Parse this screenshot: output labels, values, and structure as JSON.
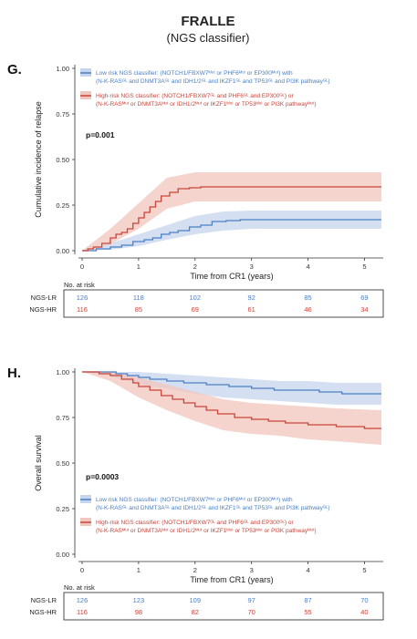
{
  "header": {
    "title": "FRALLE",
    "subtitle": "(NGS classifier)"
  },
  "colors": {
    "low": "#4a7fc4",
    "low_band": "#c6d5ee",
    "high": "#c9453a",
    "high_band": "#f1c6bd",
    "axis": "#333333"
  },
  "legend": {
    "low_line1": "Low risk NGS classifier: (NOTCH1/FBXW7ᴹᵘᵗ or PHF6ᴹᵘᵗ or EP300ᴹᵘᵗ) with",
    "low_line2": "(N-K-RASᴳᴸ and DNMT3Aᴳᴸ and IDH1/2ᴳᴸ and IKZF1ᴳᴸ and TP53ᴳᴸ and PI3K pathwayᴳᴸ)",
    "high_line1": "High-risk NGS classifier: (NOTCH1/FBXW7ᴳᴸ and PHF6ᴳᴸ and EP300ᴳᴸ) or",
    "high_line2": "(N-K-RASᴹᵘᵗ or DNMT3Aᴹᵘᵗ or IDH1/2ᴹᵘᵗ or IKZF1ᴹᵘᵗ or TP53ᴹᵘᵗ or PI3K pathwayᴹᵘᵗ)"
  },
  "chart_data": [
    {
      "type": "line",
      "panel_label": "G.",
      "ylabel": "Cumulative incidence of relapse",
      "xlabel": "Time from CR1 (years)",
      "xlim": [
        0,
        5.3
      ],
      "ylim": [
        0,
        1
      ],
      "x_ticks": [
        "0",
        "1",
        "2",
        "3",
        "4",
        "5"
      ],
      "y_ticks": [
        "0.00",
        "0.25",
        "0.50",
        "0.75",
        "1.00"
      ],
      "pvalue": "p=0.001",
      "legend_position": "top",
      "series": [
        {
          "key": "low",
          "points": [
            [
              0,
              0
            ],
            [
              0.25,
              0.01
            ],
            [
              0.5,
              0.02
            ],
            [
              0.7,
              0.03
            ],
            [
              0.9,
              0.05
            ],
            [
              1.0,
              0.05
            ],
            [
              1.1,
              0.06
            ],
            [
              1.25,
              0.07
            ],
            [
              1.4,
              0.09
            ],
            [
              1.55,
              0.1
            ],
            [
              1.7,
              0.11
            ],
            [
              1.9,
              0.13
            ],
            [
              2.1,
              0.14
            ],
            [
              2.3,
              0.16
            ],
            [
              2.55,
              0.165
            ],
            [
              2.8,
              0.17
            ],
            [
              3.2,
              0.17
            ],
            [
              5.3,
              0.17
            ]
          ],
          "lower": [
            [
              0,
              0
            ],
            [
              0.5,
              0.005
            ],
            [
              1.0,
              0.025
            ],
            [
              1.5,
              0.06
            ],
            [
              2.0,
              0.09
            ],
            [
              2.5,
              0.11
            ],
            [
              3.0,
              0.12
            ],
            [
              5.3,
              0.12
            ]
          ],
          "upper": [
            [
              0,
              0
            ],
            [
              0.5,
              0.04
            ],
            [
              1.0,
              0.09
            ],
            [
              1.5,
              0.14
            ],
            [
              2.0,
              0.19
            ],
            [
              2.5,
              0.215
            ],
            [
              3.0,
              0.22
            ],
            [
              5.3,
              0.22
            ]
          ]
        },
        {
          "key": "high",
          "points": [
            [
              0,
              0
            ],
            [
              0.1,
              0.01
            ],
            [
              0.2,
              0.02
            ],
            [
              0.35,
              0.04
            ],
            [
              0.5,
              0.07
            ],
            [
              0.6,
              0.09
            ],
            [
              0.7,
              0.1
            ],
            [
              0.8,
              0.12
            ],
            [
              0.9,
              0.15
            ],
            [
              1.0,
              0.18
            ],
            [
              1.1,
              0.21
            ],
            [
              1.2,
              0.24
            ],
            [
              1.3,
              0.27
            ],
            [
              1.4,
              0.3
            ],
            [
              1.55,
              0.32
            ],
            [
              1.7,
              0.34
            ],
            [
              1.9,
              0.345
            ],
            [
              2.1,
              0.35
            ],
            [
              2.5,
              0.35
            ],
            [
              3.0,
              0.35
            ],
            [
              5.3,
              0.35
            ]
          ],
          "lower": [
            [
              0,
              0
            ],
            [
              0.5,
              0.035
            ],
            [
              1.0,
              0.12
            ],
            [
              1.5,
              0.23
            ],
            [
              2.0,
              0.27
            ],
            [
              2.5,
              0.27
            ],
            [
              5.3,
              0.27
            ]
          ],
          "upper": [
            [
              0,
              0
            ],
            [
              0.5,
              0.12
            ],
            [
              1.0,
              0.26
            ],
            [
              1.5,
              0.4
            ],
            [
              2.0,
              0.43
            ],
            [
              2.5,
              0.43
            ],
            [
              5.3,
              0.43
            ]
          ]
        }
      ],
      "risk_table": {
        "title": "No. at risk",
        "rows": [
          {
            "label": "NGS-LR",
            "key": "low",
            "values": [
              "126",
              "118",
              "102",
              "92",
              "85",
              "69"
            ]
          },
          {
            "label": "NGS-HR",
            "key": "high",
            "values": [
              "116",
              "85",
              "69",
              "61",
              "46",
              "34"
            ]
          }
        ]
      }
    },
    {
      "type": "line",
      "panel_label": "H.",
      "ylabel": "Overall survival",
      "xlabel": "Time from CR1 (years)",
      "xlim": [
        0,
        5.3
      ],
      "ylim": [
        0,
        1
      ],
      "x_ticks": [
        "0",
        "1",
        "2",
        "3",
        "4",
        "5"
      ],
      "y_ticks": [
        "0.00",
        "0.25",
        "0.50",
        "0.75",
        "1.00"
      ],
      "pvalue": "p=0.0003",
      "legend_position": "bottom",
      "series": [
        {
          "key": "low",
          "points": [
            [
              0,
              1
            ],
            [
              0.4,
              1
            ],
            [
              0.6,
              0.99
            ],
            [
              0.8,
              0.98
            ],
            [
              1.0,
              0.97
            ],
            [
              1.2,
              0.96
            ],
            [
              1.5,
              0.95
            ],
            [
              1.8,
              0.94
            ],
            [
              2.2,
              0.93
            ],
            [
              2.6,
              0.92
            ],
            [
              3.0,
              0.91
            ],
            [
              3.4,
              0.9
            ],
            [
              3.8,
              0.9
            ],
            [
              4.2,
              0.89
            ],
            [
              4.6,
              0.88
            ],
            [
              5.3,
              0.88
            ]
          ],
          "lower": [
            [
              0,
              1
            ],
            [
              0.5,
              0.98
            ],
            [
              1.0,
              0.93
            ],
            [
              1.5,
              0.91
            ],
            [
              2.0,
              0.88
            ],
            [
              2.5,
              0.86
            ],
            [
              3.0,
              0.85
            ],
            [
              3.5,
              0.84
            ],
            [
              4.0,
              0.83
            ],
            [
              4.5,
              0.82
            ],
            [
              5.3,
              0.82
            ]
          ],
          "upper": [
            [
              0,
              1
            ],
            [
              0.5,
              1.0
            ],
            [
              1.0,
              1.0
            ],
            [
              1.5,
              0.99
            ],
            [
              2.0,
              0.98
            ],
            [
              2.5,
              0.97
            ],
            [
              3.0,
              0.96
            ],
            [
              3.5,
              0.95
            ],
            [
              4.0,
              0.95
            ],
            [
              4.5,
              0.94
            ],
            [
              5.3,
              0.94
            ]
          ]
        },
        {
          "key": "high",
          "points": [
            [
              0,
              1
            ],
            [
              0.2,
              1
            ],
            [
              0.3,
              0.99
            ],
            [
              0.5,
              0.98
            ],
            [
              0.7,
              0.96
            ],
            [
              0.9,
              0.94
            ],
            [
              1.0,
              0.92
            ],
            [
              1.2,
              0.9
            ],
            [
              1.4,
              0.87
            ],
            [
              1.6,
              0.85
            ],
            [
              1.8,
              0.83
            ],
            [
              2.0,
              0.81
            ],
            [
              2.2,
              0.79
            ],
            [
              2.4,
              0.77
            ],
            [
              2.7,
              0.75
            ],
            [
              3.0,
              0.74
            ],
            [
              3.3,
              0.73
            ],
            [
              3.6,
              0.72
            ],
            [
              4.0,
              0.71
            ],
            [
              4.5,
              0.7
            ],
            [
              5.0,
              0.69
            ],
            [
              5.3,
              0.69
            ]
          ],
          "lower": [
            [
              0,
              1
            ],
            [
              0.3,
              0.97
            ],
            [
              0.5,
              0.95
            ],
            [
              1.0,
              0.86
            ],
            [
              1.5,
              0.79
            ],
            [
              2.0,
              0.73
            ],
            [
              2.5,
              0.68
            ],
            [
              3.0,
              0.66
            ],
            [
              3.5,
              0.65
            ],
            [
              4.0,
              0.63
            ],
            [
              4.5,
              0.62
            ],
            [
              5.3,
              0.6
            ]
          ],
          "upper": [
            [
              0,
              1
            ],
            [
              0.3,
              1.0
            ],
            [
              0.5,
              1.0
            ],
            [
              1.0,
              0.97
            ],
            [
              1.5,
              0.93
            ],
            [
              2.0,
              0.89
            ],
            [
              2.5,
              0.85
            ],
            [
              3.0,
              0.83
            ],
            [
              3.5,
              0.82
            ],
            [
              4.0,
              0.81
            ],
            [
              4.5,
              0.8
            ],
            [
              5.3,
              0.79
            ]
          ]
        }
      ],
      "risk_table": {
        "title": "No. at risk",
        "rows": [
          {
            "label": "NGS-LR",
            "key": "low",
            "values": [
              "126",
              "123",
              "109",
              "97",
              "87",
              "70"
            ]
          },
          {
            "label": "NGS-HR",
            "key": "high",
            "values": [
              "116",
              "98",
              "82",
              "70",
              "55",
              "40"
            ]
          }
        ]
      }
    }
  ]
}
